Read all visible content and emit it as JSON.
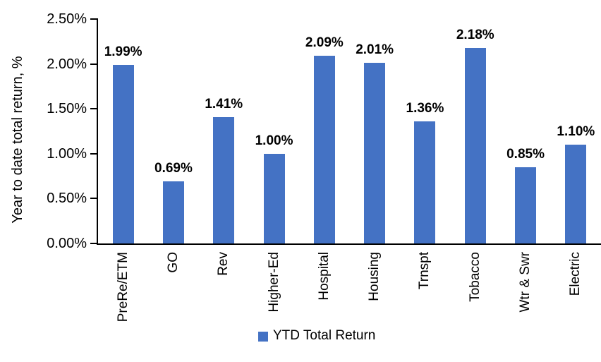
{
  "chart_data": {
    "type": "bar",
    "title": "",
    "xlabel": "",
    "ylabel": "Year to date total return, %",
    "categories": [
      "PreRe/ETM",
      "GO",
      "Rev",
      "Higher-Ed",
      "Hospital",
      "Housing",
      "Trnspt",
      "Tobacco",
      "Wtr & Swr",
      "Electric"
    ],
    "series": [
      {
        "name": "YTD Total Return",
        "values": [
          1.99,
          0.69,
          1.41,
          1.0,
          2.09,
          2.01,
          1.36,
          2.18,
          0.85,
          1.1
        ],
        "color": "#4472C4"
      }
    ],
    "data_labels": [
      "1.99%",
      "0.69%",
      "1.41%",
      "1.00%",
      "2.09%",
      "2.01%",
      "1.36%",
      "2.18%",
      "0.85%",
      "1.10%"
    ],
    "y_axis": {
      "range": [
        0,
        2.5
      ],
      "ticks": [
        0,
        0.5,
        1.0,
        1.5,
        2.0,
        2.5
      ],
      "tick_labels": [
        "0.00%",
        "0.50%",
        "1.00%",
        "1.50%",
        "2.00%",
        "2.50%"
      ]
    },
    "legend": {
      "label": "YTD Total Return",
      "position": "bottom",
      "swatch_color": "#4472C4"
    },
    "grid": false,
    "bar_color": "#4472C4",
    "axis_color": "#000000",
    "text_color": "#000000",
    "background": "#FFFFFF"
  }
}
